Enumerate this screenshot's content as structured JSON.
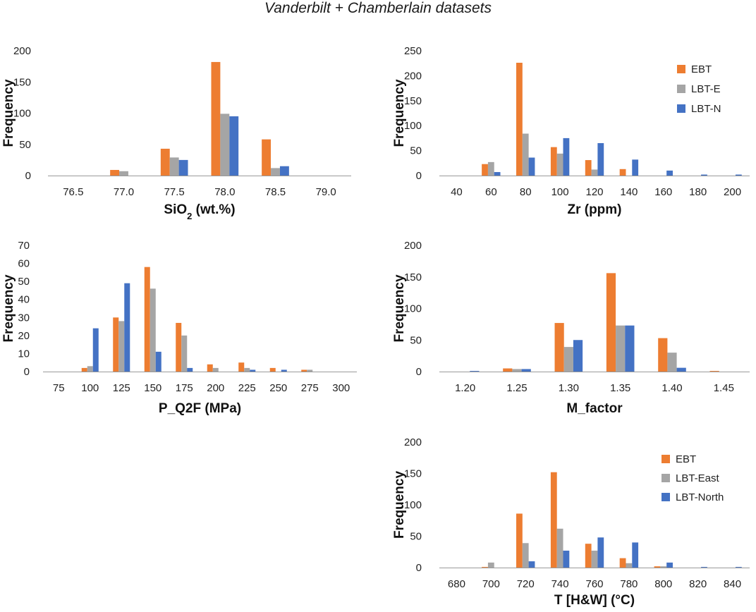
{
  "figure_title": "Vanderbilt + Chamberlain datasets",
  "colors": {
    "EBT": "#ED7D31",
    "LBT_E": "#A5A5A5",
    "LBT_N": "#4472C4"
  },
  "chart_data": [
    {
      "id": "sio2",
      "type": "bar",
      "title": "",
      "xlabel": "SiO",
      "xlabel_sub": "2",
      "xlabel_suffix": " (wt.%)",
      "ylabel": "Frequency",
      "ylim": [
        0,
        200
      ],
      "yticks": [
        0,
        50,
        100,
        150,
        200
      ],
      "categories": [
        "76.5",
        "77.0",
        "77.5",
        "78.0",
        "78.5",
        "79.0"
      ],
      "series": [
        {
          "name": "EBT",
          "values": [
            0,
            9,
            43,
            182,
            58,
            0
          ]
        },
        {
          "name": "LBT-E",
          "values": [
            0,
            7,
            29,
            99,
            12,
            0
          ]
        },
        {
          "name": "LBT-N",
          "values": [
            0,
            0,
            25,
            95,
            15,
            0
          ]
        }
      ],
      "legend": null
    },
    {
      "id": "zr",
      "type": "bar",
      "title": "",
      "xlabel": "Zr (ppm)",
      "ylabel": "Frequency",
      "ylim": [
        0,
        250
      ],
      "yticks": [
        0,
        50,
        100,
        150,
        200,
        250
      ],
      "categories": [
        "40",
        "60",
        "80",
        "100",
        "120",
        "140",
        "160",
        "180",
        "200"
      ],
      "series": [
        {
          "name": "EBT",
          "values": [
            0,
            23,
            226,
            57,
            31,
            13,
            0,
            0,
            0
          ]
        },
        {
          "name": "LBT-E",
          "values": [
            0,
            27,
            84,
            44,
            12,
            0,
            0,
            0,
            0
          ]
        },
        {
          "name": "LBT-N",
          "values": [
            0,
            7,
            36,
            75,
            65,
            32,
            10,
            2,
            2
          ]
        }
      ],
      "legend": {
        "position": "top-right",
        "labels": [
          "EBT",
          "LBT-E",
          "LBT-N"
        ]
      }
    },
    {
      "id": "pq2f",
      "type": "bar",
      "title": "",
      "xlabel": "P_Q2F (MPa)",
      "ylabel": "Frequency",
      "ylim": [
        0,
        70
      ],
      "yticks": [
        0,
        10,
        20,
        30,
        40,
        50,
        60,
        70
      ],
      "categories": [
        "75",
        "100",
        "125",
        "150",
        "175",
        "200",
        "225",
        "250",
        "275",
        "300"
      ],
      "series": [
        {
          "name": "EBT",
          "values": [
            0,
            2,
            30,
            58,
            27,
            4,
            5,
            2,
            1,
            0
          ]
        },
        {
          "name": "LBT-E",
          "values": [
            0,
            3,
            28,
            46,
            20,
            2,
            2,
            0,
            1,
            0
          ]
        },
        {
          "name": "LBT-N",
          "values": [
            0,
            24,
            49,
            11,
            2,
            0,
            1,
            1,
            0,
            0
          ]
        }
      ],
      "legend": null
    },
    {
      "id": "mfactor",
      "type": "bar",
      "title": "",
      "xlabel": "M_factor",
      "ylabel": "Frequency",
      "ylim": [
        0,
        200
      ],
      "yticks": [
        0,
        50,
        100,
        150,
        200
      ],
      "categories": [
        "1.20",
        "1.25",
        "1.30",
        "1.35",
        "1.40",
        "1.45"
      ],
      "series": [
        {
          "name": "EBT",
          "values": [
            0,
            5,
            77,
            156,
            53,
            1
          ]
        },
        {
          "name": "LBT-E",
          "values": [
            0,
            4,
            39,
            73,
            30,
            0
          ]
        },
        {
          "name": "LBT-N",
          "values": [
            1,
            4,
            50,
            73,
            6,
            0
          ]
        }
      ],
      "legend": null
    },
    {
      "id": "thw",
      "type": "bar",
      "title": "",
      "xlabel": "T [H&W] (°C)",
      "ylabel": "Frequency",
      "ylim": [
        0,
        200
      ],
      "yticks": [
        0,
        50,
        100,
        150,
        200
      ],
      "categories": [
        "680",
        "700",
        "720",
        "740",
        "760",
        "780",
        "800",
        "820",
        "840"
      ],
      "series": [
        {
          "name": "EBT",
          "values": [
            0,
            1,
            86,
            152,
            38,
            15,
            2,
            0,
            0
          ]
        },
        {
          "name": "LBT-East",
          "values": [
            0,
            8,
            39,
            62,
            27,
            7,
            2,
            0,
            0
          ]
        },
        {
          "name": "LBT-North",
          "values": [
            0,
            0,
            10,
            27,
            48,
            40,
            8,
            1,
            1
          ]
        }
      ],
      "legend": {
        "position": "top-right",
        "labels": [
          "EBT",
          "LBT-East",
          "LBT-North"
        ]
      }
    }
  ]
}
